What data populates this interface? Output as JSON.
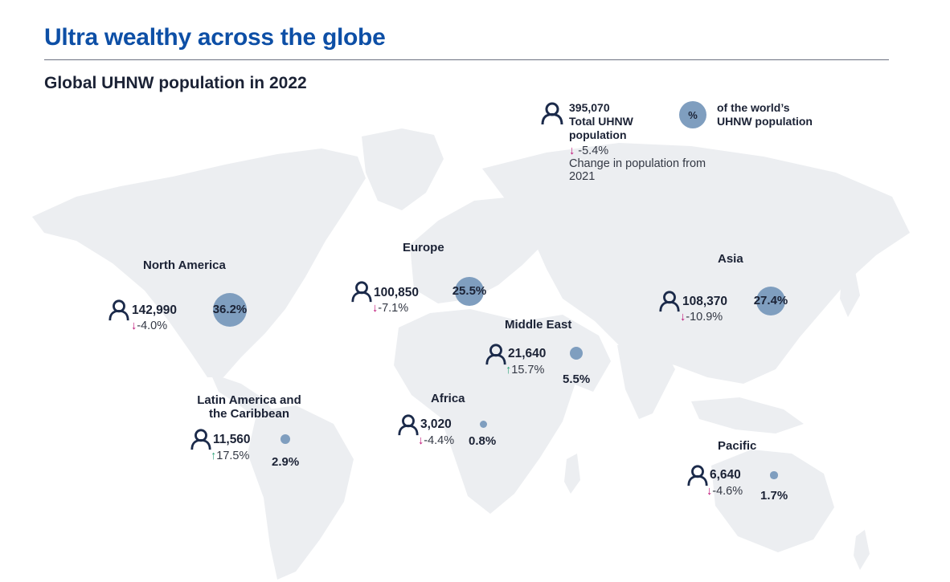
{
  "header": {
    "title": "Ultra wealthy across the globe",
    "subtitle": "Global UHNW population in 2022"
  },
  "legend": {
    "total": "395,070",
    "total_label": "Total UHNW population",
    "change_arrow": "↓",
    "change_value": "-5.4%",
    "change_label": "Change in population from 2021",
    "circle_symbol": "%",
    "circle_label": "of the world’s UHNW population"
  },
  "colors": {
    "title": "#0d4fa6",
    "bubble": "#7f9ebf",
    "land": "#eceef1",
    "icon": "#1b2a4a",
    "decrease": "#c0187a",
    "increase": "#2fa37a"
  },
  "regions": {
    "north_america": {
      "name": "North America",
      "population": "142,990",
      "arrow": "↓",
      "change": "-4.0%",
      "share": "36.2%",
      "share_value": 36.2
    },
    "europe": {
      "name": "Europe",
      "population": "100,850",
      "arrow": "↓",
      "change": "-7.1%",
      "share": "25.5%",
      "share_value": 25.5
    },
    "asia": {
      "name": "Asia",
      "population": "108,370",
      "arrow": "↓",
      "change": "-10.9%",
      "share": "27.4%",
      "share_value": 27.4
    },
    "middle_east": {
      "name": "Middle East",
      "population": "21,640",
      "arrow": "↑",
      "change": "15.7%",
      "share": "5.5%",
      "share_value": 5.5
    },
    "latin_america": {
      "name_line1": "Latin America and",
      "name_line2": "the Caribbean",
      "population": "11,560",
      "arrow": "↑",
      "change": "17.5%",
      "share": "2.9%",
      "share_value": 2.9
    },
    "africa": {
      "name": "Africa",
      "population": "3,020",
      "arrow": "↓",
      "change": "-4.4%",
      "share": "0.8%",
      "share_value": 0.8
    },
    "pacific": {
      "name": "Pacific",
      "population": "6,640",
      "arrow": "↓",
      "change": "-4.6%",
      "share": "1.7%",
      "share_value": 1.7
    }
  }
}
